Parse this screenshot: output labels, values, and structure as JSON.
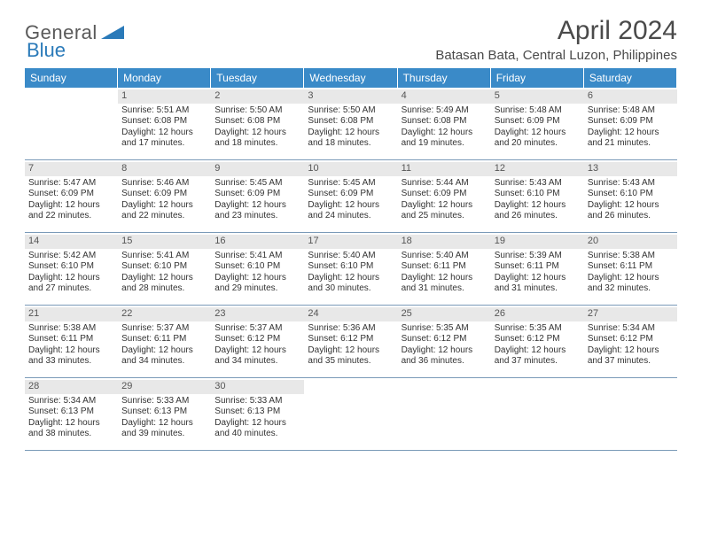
{
  "logo": {
    "part1": "General",
    "part2": "Blue"
  },
  "title": "April 2024",
  "location": "Batasan Bata, Central Luzon, Philippines",
  "colors": {
    "header_bg": "#3a8ac8",
    "header_text": "#ffffff",
    "daynum_bg": "#e8e8e8",
    "border": "#7a9ab8",
    "body_text": "#333333",
    "logo_gray": "#5a5a5a",
    "logo_blue": "#2a7ab9"
  },
  "weekdays": [
    "Sunday",
    "Monday",
    "Tuesday",
    "Wednesday",
    "Thursday",
    "Friday",
    "Saturday"
  ],
  "weeks": [
    [
      null,
      {
        "n": "1",
        "sr": "5:51 AM",
        "ss": "6:08 PM",
        "dl": "12 hours and 17 minutes."
      },
      {
        "n": "2",
        "sr": "5:50 AM",
        "ss": "6:08 PM",
        "dl": "12 hours and 18 minutes."
      },
      {
        "n": "3",
        "sr": "5:50 AM",
        "ss": "6:08 PM",
        "dl": "12 hours and 18 minutes."
      },
      {
        "n": "4",
        "sr": "5:49 AM",
        "ss": "6:08 PM",
        "dl": "12 hours and 19 minutes."
      },
      {
        "n": "5",
        "sr": "5:48 AM",
        "ss": "6:09 PM",
        "dl": "12 hours and 20 minutes."
      },
      {
        "n": "6",
        "sr": "5:48 AM",
        "ss": "6:09 PM",
        "dl": "12 hours and 21 minutes."
      }
    ],
    [
      {
        "n": "7",
        "sr": "5:47 AM",
        "ss": "6:09 PM",
        "dl": "12 hours and 22 minutes."
      },
      {
        "n": "8",
        "sr": "5:46 AM",
        "ss": "6:09 PM",
        "dl": "12 hours and 22 minutes."
      },
      {
        "n": "9",
        "sr": "5:45 AM",
        "ss": "6:09 PM",
        "dl": "12 hours and 23 minutes."
      },
      {
        "n": "10",
        "sr": "5:45 AM",
        "ss": "6:09 PM",
        "dl": "12 hours and 24 minutes."
      },
      {
        "n": "11",
        "sr": "5:44 AM",
        "ss": "6:09 PM",
        "dl": "12 hours and 25 minutes."
      },
      {
        "n": "12",
        "sr": "5:43 AM",
        "ss": "6:10 PM",
        "dl": "12 hours and 26 minutes."
      },
      {
        "n": "13",
        "sr": "5:43 AM",
        "ss": "6:10 PM",
        "dl": "12 hours and 26 minutes."
      }
    ],
    [
      {
        "n": "14",
        "sr": "5:42 AM",
        "ss": "6:10 PM",
        "dl": "12 hours and 27 minutes."
      },
      {
        "n": "15",
        "sr": "5:41 AM",
        "ss": "6:10 PM",
        "dl": "12 hours and 28 minutes."
      },
      {
        "n": "16",
        "sr": "5:41 AM",
        "ss": "6:10 PM",
        "dl": "12 hours and 29 minutes."
      },
      {
        "n": "17",
        "sr": "5:40 AM",
        "ss": "6:10 PM",
        "dl": "12 hours and 30 minutes."
      },
      {
        "n": "18",
        "sr": "5:40 AM",
        "ss": "6:11 PM",
        "dl": "12 hours and 31 minutes."
      },
      {
        "n": "19",
        "sr": "5:39 AM",
        "ss": "6:11 PM",
        "dl": "12 hours and 31 minutes."
      },
      {
        "n": "20",
        "sr": "5:38 AM",
        "ss": "6:11 PM",
        "dl": "12 hours and 32 minutes."
      }
    ],
    [
      {
        "n": "21",
        "sr": "5:38 AM",
        "ss": "6:11 PM",
        "dl": "12 hours and 33 minutes."
      },
      {
        "n": "22",
        "sr": "5:37 AM",
        "ss": "6:11 PM",
        "dl": "12 hours and 34 minutes."
      },
      {
        "n": "23",
        "sr": "5:37 AM",
        "ss": "6:12 PM",
        "dl": "12 hours and 34 minutes."
      },
      {
        "n": "24",
        "sr": "5:36 AM",
        "ss": "6:12 PM",
        "dl": "12 hours and 35 minutes."
      },
      {
        "n": "25",
        "sr": "5:35 AM",
        "ss": "6:12 PM",
        "dl": "12 hours and 36 minutes."
      },
      {
        "n": "26",
        "sr": "5:35 AM",
        "ss": "6:12 PM",
        "dl": "12 hours and 37 minutes."
      },
      {
        "n": "27",
        "sr": "5:34 AM",
        "ss": "6:12 PM",
        "dl": "12 hours and 37 minutes."
      }
    ],
    [
      {
        "n": "28",
        "sr": "5:34 AM",
        "ss": "6:13 PM",
        "dl": "12 hours and 38 minutes."
      },
      {
        "n": "29",
        "sr": "5:33 AM",
        "ss": "6:13 PM",
        "dl": "12 hours and 39 minutes."
      },
      {
        "n": "30",
        "sr": "5:33 AM",
        "ss": "6:13 PM",
        "dl": "12 hours and 40 minutes."
      },
      null,
      null,
      null,
      null
    ]
  ],
  "labels": {
    "sunrise": "Sunrise: ",
    "sunset": "Sunset: ",
    "daylight": "Daylight: "
  }
}
